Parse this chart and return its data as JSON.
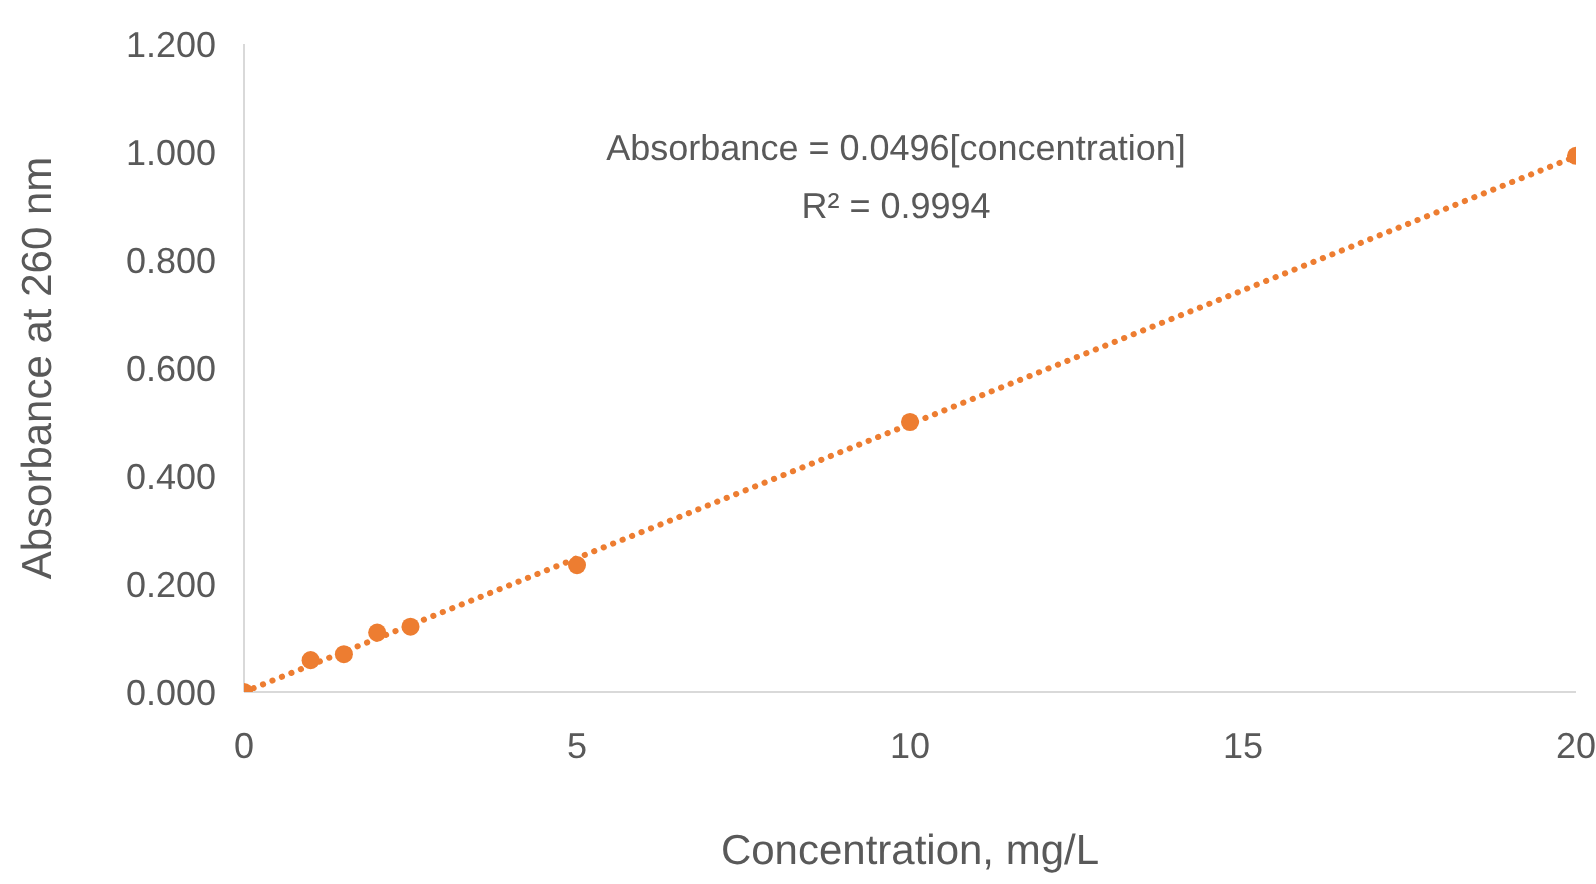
{
  "chart_data": {
    "type": "scatter",
    "xlabel": "Concentration, mg/L",
    "ylabel": "Absorbance at 260 nm",
    "x": [
      0,
      1,
      1.5,
      2,
      2.5,
      5,
      10,
      20
    ],
    "series": [
      {
        "color": "#ed7d31",
        "marker": "circle",
        "values": [
          0,
          0.059,
          0.07,
          0.11,
          0.121,
          0.235,
          0.5,
          0.993
        ]
      },
      {
        "type": "line",
        "color": "#ed7d31",
        "line_style": "dotted",
        "marker": "none",
        "x": [
          0,
          20
        ],
        "values": [
          0,
          0.992
        ]
      }
    ],
    "xlim": [
      0,
      20
    ],
    "xticks": [
      0,
      5,
      10,
      15,
      20
    ],
    "ylim": [
      0,
      1.2
    ],
    "yticks": [
      {
        "value": 0,
        "label": "0.000"
      },
      {
        "value": 0.2,
        "label": "0.200"
      },
      {
        "value": 0.4,
        "label": "0.400"
      },
      {
        "value": 0.6,
        "label": "0.600"
      },
      {
        "value": 0.8,
        "label": "0.800"
      },
      {
        "value": 1,
        "label": "1.000"
      },
      {
        "value": 1.2,
        "label": "1.200"
      }
    ],
    "grid": false,
    "legend": false,
    "annotations": [
      "Absorbance = 0.0496[concentration]",
      "R² = 0.9994"
    ]
  }
}
